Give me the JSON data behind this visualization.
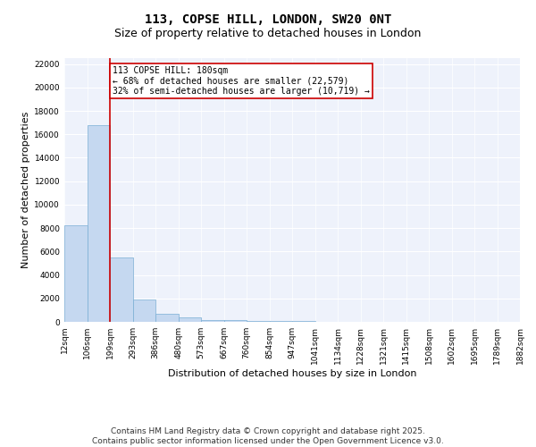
{
  "title": "113, COPSE HILL, LONDON, SW20 0NT",
  "subtitle": "Size of property relative to detached houses in London",
  "xlabel": "Distribution of detached houses by size in London",
  "ylabel": "Number of detached properties",
  "bar_color": "#c5d8f0",
  "bar_edge_color": "#7aaed4",
  "background_color": "#eef2fb",
  "grid_color": "#ffffff",
  "annotation_text": "113 COPSE HILL: 180sqm\n← 68% of detached houses are smaller (22,579)\n32% of semi-detached houses are larger (10,719) →",
  "vline_color": "#cc0000",
  "categories": [
    "12sqm",
    "106sqm",
    "199sqm",
    "293sqm",
    "386sqm",
    "480sqm",
    "573sqm",
    "667sqm",
    "760sqm",
    "854sqm",
    "947sqm",
    "1041sqm",
    "1134sqm",
    "1228sqm",
    "1321sqm",
    "1415sqm",
    "1508sqm",
    "1602sqm",
    "1695sqm",
    "1789sqm",
    "1882sqm"
  ],
  "bin_edges": [
    12,
    106,
    199,
    293,
    386,
    480,
    573,
    667,
    760,
    854,
    947,
    1041,
    1134,
    1228,
    1321,
    1415,
    1508,
    1602,
    1695,
    1789,
    1882
  ],
  "values": [
    8200,
    16800,
    5500,
    1900,
    700,
    380,
    180,
    130,
    90,
    65,
    45,
    35,
    25,
    18,
    12,
    10,
    7,
    5,
    4,
    3
  ],
  "ylim": [
    0,
    22500
  ],
  "yticks": [
    0,
    2000,
    4000,
    6000,
    8000,
    10000,
    12000,
    14000,
    16000,
    18000,
    20000,
    22000
  ],
  "footer_text": "Contains HM Land Registry data © Crown copyright and database right 2025.\nContains public sector information licensed under the Open Government Licence v3.0.",
  "title_fontsize": 10,
  "subtitle_fontsize": 9,
  "axis_fontsize": 8,
  "tick_fontsize": 6.5,
  "footer_fontsize": 6.5,
  "annot_fontsize": 7
}
